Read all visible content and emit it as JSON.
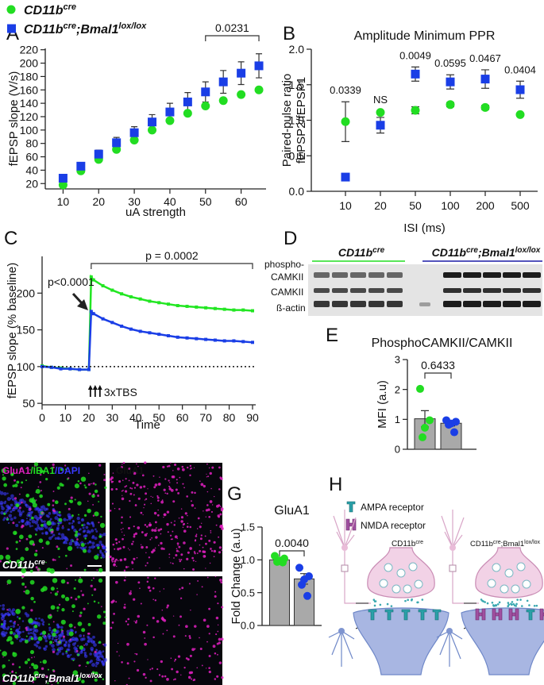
{
  "panel_labels": [
    "A",
    "B",
    "C",
    "D",
    "E",
    "F",
    "G",
    "H"
  ],
  "chart_data": [
    {
      "type": "scatter",
      "xlabel": "uA strength",
      "ylabel": "fEPSP slope (V/s)",
      "x": [
        10,
        15,
        20,
        25,
        30,
        35,
        40,
        45,
        50,
        55,
        60,
        65
      ],
      "series": [
        {
          "name": [
            "CD11b",
            "cre"
          ],
          "color": "#22dd22",
          "marker": "circle",
          "values": [
            18,
            39,
            56,
            71,
            85,
            100,
            114,
            125,
            136,
            144,
            153,
            160
          ]
        },
        {
          "name": [
            "CD11b",
            "cre",
            ";Bmal1",
            "lox/lox"
          ],
          "color": "#1a3ee6",
          "marker": "square",
          "values": [
            28,
            46,
            64,
            81,
            96,
            112,
            127,
            142,
            157,
            172,
            185,
            196
          ],
          "errors": [
            3,
            5,
            6,
            8,
            9,
            11,
            13,
            14,
            15,
            17,
            17,
            18
          ]
        }
      ],
      "xlim": [
        5,
        67
      ],
      "ylim": [
        12,
        222
      ],
      "xticks": [
        10,
        20,
        30,
        40,
        50,
        60
      ],
      "yticks": [
        20,
        40,
        60,
        80,
        100,
        120,
        140,
        160,
        180,
        200,
        220
      ],
      "annotation": {
        "text": "0.0231",
        "x": [
          50,
          65
        ]
      }
    },
    {
      "type": "dot",
      "title": "Amplitude Minimum PPR",
      "xlabel": "ISI (ms)",
      "ylabel": [
        "Paired-pulse ratio",
        "fEPSP2/fEPSP1"
      ],
      "categories": [
        "10",
        "20",
        "50",
        "100",
        "200",
        "500"
      ],
      "series": [
        {
          "color": "#22dd22",
          "marker": "circle",
          "values": [
            0.98,
            1.11,
            1.14,
            1.22,
            1.18,
            1.08
          ],
          "errors": [
            0.28,
            0.02,
            0.05,
            0.03,
            0.03,
            0.02
          ]
        },
        {
          "color": "#1a3ee6",
          "marker": "square",
          "values": [
            0.2,
            0.93,
            1.65,
            1.54,
            1.58,
            1.43
          ],
          "errors": [
            0.04,
            0.11,
            0.1,
            0.1,
            0.13,
            0.12
          ]
        }
      ],
      "ylim": [
        0,
        2
      ],
      "yticks": [
        {
          "value": 0,
          "label": "0.0"
        },
        0.5,
        {
          "value": 1,
          "label": "1.0"
        },
        1.5,
        {
          "value": 2,
          "label": "2.0"
        }
      ],
      "annotations": [
        "0.0339",
        "NS",
        "0.0049",
        "0.0595",
        "0.0467",
        "0.0404"
      ]
    },
    {
      "type": "line",
      "xlabel": "Time",
      "ylabel": "fEPSP slope (% baseline)",
      "x": [
        0,
        4,
        8,
        12,
        16,
        20,
        21,
        22,
        26,
        30,
        34,
        38,
        42,
        46,
        50,
        54,
        58,
        62,
        66,
        70,
        74,
        78,
        82,
        86,
        90
      ],
      "series": [
        {
          "color": "#22e622",
          "values": [
            101,
            99,
            98,
            97,
            96,
            96,
            222,
            218,
            210,
            204,
            199,
            195,
            192,
            189,
            187,
            185,
            183,
            182,
            181,
            180,
            179,
            178,
            177,
            177,
            176
          ]
        },
        {
          "color": "#1a3ee6",
          "values": [
            100,
            99,
            97,
            97,
            96,
            96,
            175,
            172,
            165,
            160,
            155,
            151,
            148,
            146,
            144,
            142,
            140,
            139,
            138,
            137,
            136,
            135,
            135,
            134,
            133
          ]
        }
      ],
      "xlim": [
        0,
        90
      ],
      "ylim": [
        48,
        250
      ],
      "xticks": [
        0,
        10,
        20,
        30,
        40,
        50,
        60,
        70,
        80,
        90
      ],
      "yticks": [
        50,
        100,
        150,
        200
      ],
      "baseline": 100,
      "annotation": {
        "text": "p = 0.0002",
        "x": [
          21,
          90
        ]
      },
      "arrow_note": "p<0.0001",
      "stimulus": "3xTBS"
    },
    {
      "type": "bar",
      "title": "PhosphoCAMKII/CAMKII",
      "ylabel": "MFI (a.u)",
      "categories": [
        null,
        null
      ],
      "values": [
        1.02,
        0.87
      ],
      "errors": [
        0.27,
        0.09
      ],
      "points": [
        [
          2.02,
          0.97,
          0.72,
          0.4
        ],
        [
          0.97,
          0.92,
          0.86,
          0.82,
          0.57
        ]
      ],
      "point_colors": [
        "#22dd22",
        "#1a3ee6"
      ],
      "ylim": [
        0,
        3
      ],
      "yticks": [
        0,
        1,
        2,
        3
      ],
      "annotation": "0.6433"
    },
    {
      "type": "bar",
      "title": "GluA1",
      "ylabel": "Fold Change (a.u)",
      "categories": [
        null,
        null
      ],
      "values": [
        1.0,
        0.71
      ],
      "errors": [
        0.02,
        0.08
      ],
      "points": [
        [
          1.06,
          1.02,
          0.99,
          0.97,
          0.96
        ],
        [
          0.88,
          0.75,
          0.7,
          0.62,
          0.45
        ]
      ],
      "point_colors": [
        "#22dd22",
        "#1a3ee6"
      ],
      "ylim": [
        0,
        1.5
      ],
      "yticks": [
        {
          "value": 0,
          "label": "0.0"
        },
        0.5,
        {
          "value": 1,
          "label": "1.0"
        },
        1.5
      ],
      "annotation": "0.0040"
    }
  ],
  "blot": {
    "groups": [
      [
        "CD11b",
        "cre"
      ],
      [
        "CD11b",
        "cre",
        ";Bmal1",
        "lox/lox"
      ]
    ],
    "group_colors": [
      "#22dd22",
      "#1a1aa6"
    ],
    "rows": [
      "phospho-",
      "CAMKII",
      "CAMKII",
      "ß-actin"
    ]
  },
  "micrographs": {
    "channels": [
      "GluA1",
      "/IBA1",
      "/DAPI"
    ],
    "channel_colors": [
      "#e020c0",
      "#22dd22",
      "#3a3aff"
    ],
    "single_channel": "GluA1",
    "genotypes": [
      [
        "CD11b",
        "cre"
      ],
      [
        "CD11b",
        "cre",
        ";Bmal1",
        "lox/lox"
      ]
    ]
  },
  "schematic": {
    "legend": [
      "AMPA receptor",
      "NMDA receptor"
    ],
    "receptor_colors": [
      "#2aa0a8",
      "#a050a0"
    ],
    "genotypes": [
      [
        "CD11b",
        "cre"
      ],
      [
        "CD11b",
        "cre",
        ";Bmal1",
        "lox/lox"
      ]
    ]
  }
}
